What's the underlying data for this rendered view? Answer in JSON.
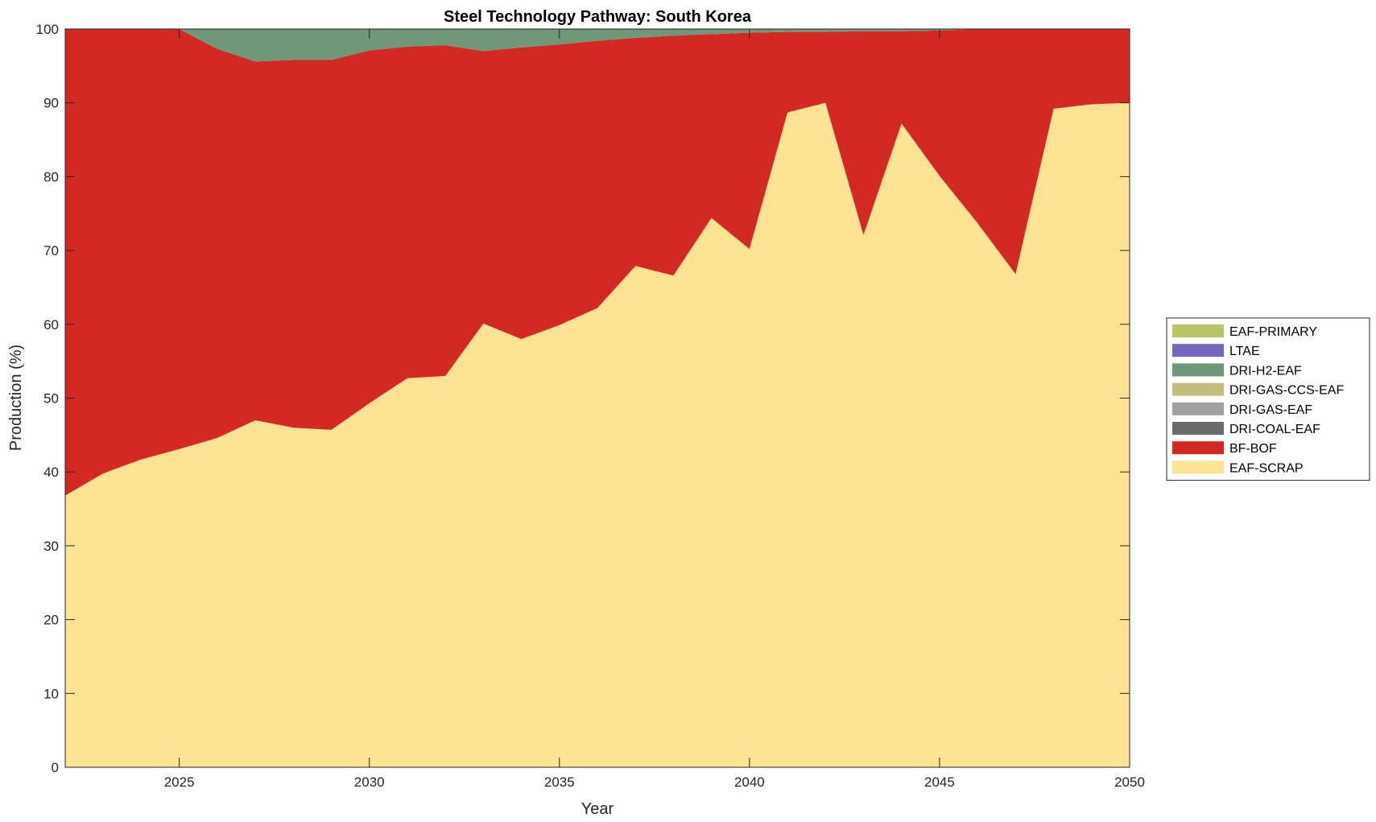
{
  "chart_data": {
    "type": "area",
    "stacked": true,
    "title": "Steel Technology Pathway: South Korea",
    "xlabel": "Year",
    "ylabel": "Production (%)",
    "xlim": [
      2022,
      2050
    ],
    "ylim": [
      0,
      100
    ],
    "xticks": [
      2025,
      2030,
      2035,
      2040,
      2045,
      2050
    ],
    "yticks": [
      0,
      10,
      20,
      30,
      40,
      50,
      60,
      70,
      80,
      90,
      100
    ],
    "grid": false,
    "legend_position": "outside-right",
    "x": [
      2022,
      2023,
      2024,
      2025,
      2026,
      2027,
      2028,
      2029,
      2030,
      2031,
      2032,
      2033,
      2034,
      2035,
      2036,
      2037,
      2038,
      2039,
      2040,
      2041,
      2042,
      2043,
      2044,
      2045,
      2046,
      2047,
      2048,
      2049,
      2050
    ],
    "series": [
      {
        "name": "EAF-SCRAP",
        "color": "#FFE395",
        "values": [
          36.8,
          39.8,
          41.7,
          43.1,
          44.6,
          47.0,
          46.0,
          45.7,
          49.3,
          52.7,
          53.0,
          60.1,
          58.0,
          59.9,
          62.2,
          67.9,
          66.6,
          74.4,
          70.2,
          88.7,
          90.0,
          72.1,
          87.2,
          80.1,
          73.7,
          66.8,
          89.2,
          89.8,
          90.0
        ]
      },
      {
        "name": "BF-BOF",
        "color": "#D22A23",
        "values": [
          63.2,
          60.2,
          58.3,
          56.9,
          52.7,
          48.6,
          49.8,
          50.1,
          47.8,
          44.9,
          44.8,
          36.9,
          39.5,
          38.0,
          36.2,
          30.9,
          32.5,
          24.9,
          29.3,
          10.9,
          9.6,
          27.6,
          12.5,
          19.7,
          26.3,
          33.2,
          10.8,
          10.2,
          10.0
        ]
      },
      {
        "name": "DRI-COAL-EAF",
        "color": "#6B6B6B",
        "values": [
          0,
          0,
          0,
          0,
          0,
          0,
          0,
          0,
          0,
          0,
          0,
          0,
          0,
          0,
          0,
          0,
          0,
          0,
          0,
          0,
          0,
          0,
          0,
          0,
          0,
          0,
          0,
          0,
          0
        ]
      },
      {
        "name": "DRI-GAS-EAF",
        "color": "#A0A0A0",
        "values": [
          0,
          0,
          0,
          0,
          0,
          0,
          0,
          0,
          0,
          0,
          0,
          0,
          0,
          0,
          0,
          0,
          0,
          0,
          0,
          0,
          0,
          0,
          0,
          0,
          0,
          0,
          0,
          0,
          0
        ]
      },
      {
        "name": "DRI-GAS-CCS-EAF",
        "color": "#C2BC81",
        "values": [
          0,
          0,
          0,
          0,
          0,
          0,
          0,
          0,
          0,
          0,
          0,
          0,
          0,
          0,
          0,
          0,
          0,
          0,
          0,
          0,
          0,
          0,
          0,
          0,
          0,
          0,
          0,
          0,
          0
        ]
      },
      {
        "name": "DRI-H2-EAF",
        "color": "#6F977A",
        "values": [
          0,
          0,
          0,
          0,
          2.7,
          4.4,
          4.2,
          4.2,
          2.9,
          2.4,
          2.2,
          3.0,
          2.5,
          2.1,
          1.6,
          1.2,
          0.9,
          0.7,
          0.5,
          0.4,
          0.4,
          0.3,
          0.3,
          0.2,
          0,
          0,
          0,
          0,
          0
        ]
      },
      {
        "name": "LTAE",
        "color": "#7466BE",
        "values": [
          0,
          0,
          0,
          0,
          0,
          0,
          0,
          0,
          0,
          0,
          0,
          0,
          0,
          0,
          0,
          0,
          0,
          0,
          0,
          0,
          0,
          0,
          0,
          0,
          0,
          0,
          0,
          0,
          0
        ]
      },
      {
        "name": "EAF-PRIMARY",
        "color": "#B9C46A",
        "values": [
          0,
          0,
          0,
          0,
          0,
          0,
          0,
          0,
          0,
          0,
          0,
          0,
          0,
          0,
          0,
          0,
          0,
          0,
          0,
          0,
          0,
          0,
          0,
          0,
          0,
          0,
          0,
          0,
          0
        ]
      }
    ],
    "legend_order": [
      "EAF-PRIMARY",
      "LTAE",
      "DRI-H2-EAF",
      "DRI-GAS-CCS-EAF",
      "DRI-GAS-EAF",
      "DRI-COAL-EAF",
      "BF-BOF",
      "EAF-SCRAP"
    ]
  }
}
